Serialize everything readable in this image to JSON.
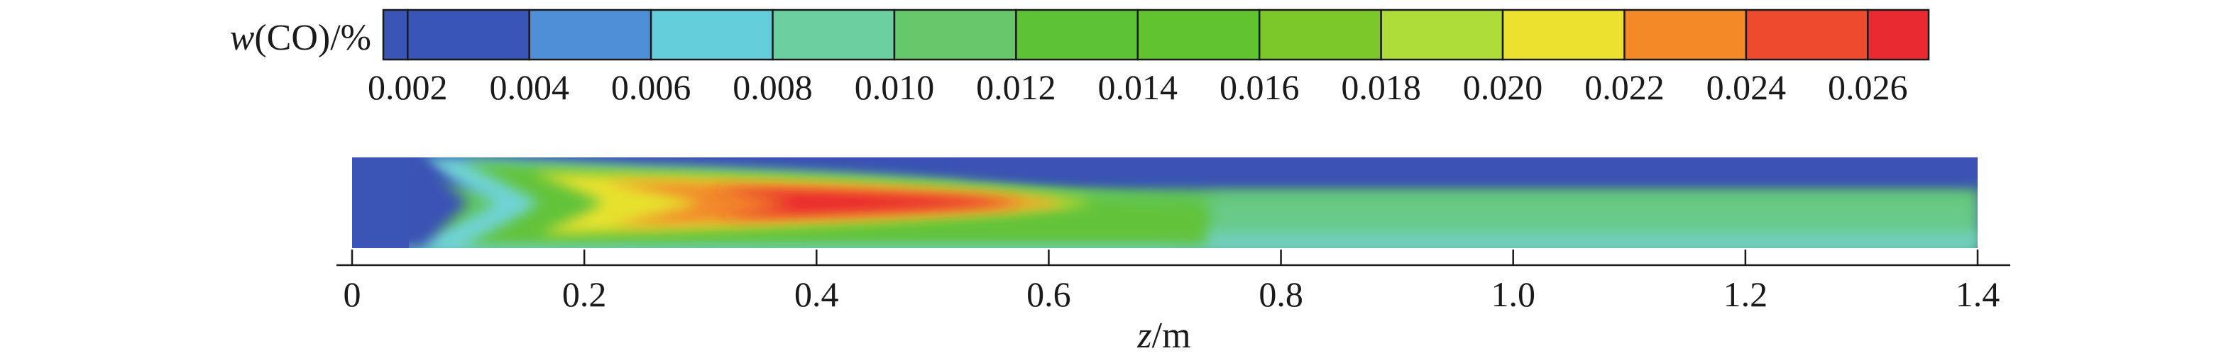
{
  "chart_data": {
    "type": "heatmap",
    "colorbar": {
      "label_var": "w",
      "label_rest": "(CO)/%",
      "tick_labels": [
        "0.002",
        "0.004",
        "0.006",
        "0.008",
        "0.010",
        "0.012",
        "0.014",
        "0.016",
        "0.018",
        "0.020",
        "0.022",
        "0.024",
        "0.026"
      ],
      "colors": [
        "#3b55b6",
        "#3a55b8",
        "#4f8fd7",
        "#65cedb",
        "#6bcfa0",
        "#66c76b",
        "#5dc235",
        "#62c331",
        "#7cc82b",
        "#aedc38",
        "#ebe12e",
        "#f38a27",
        "#ee4a2e",
        "#ea2a31"
      ],
      "orientation": "horizontal"
    },
    "x_axis": {
      "label_var": "z",
      "label_rest": "/m",
      "xlim": [
        0,
        1.4
      ],
      "ticks": [
        0,
        0.2,
        0.4,
        0.6,
        0.8,
        1.0,
        1.2,
        1.4
      ],
      "tick_labels": [
        "0",
        "0.2",
        "0.4",
        "0.6",
        "0.8",
        "1.0",
        "1.2",
        "1.4"
      ]
    },
    "field": {
      "description_values": "CO mass fraction along the reactor; peak about 0.026 near z = 0.45 m",
      "inlet_region_end": 0.06,
      "peak_z": 0.45,
      "peak_value": 0.026
    }
  }
}
